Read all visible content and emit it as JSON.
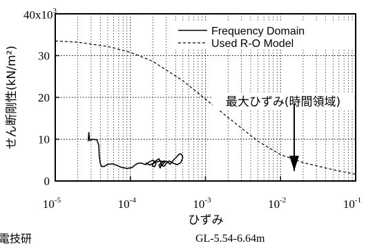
{
  "chart_data": {
    "type": "line",
    "title": "",
    "xlabel": "ひずみ",
    "ylabel": "せん断剛性(kN/m²)",
    "y_multiplier_label": "40x10",
    "y_multiplier_exp": "3",
    "xscale": "log",
    "xlim": [
      1e-05,
      0.1
    ],
    "ylim": [
      0,
      40
    ],
    "grid": true,
    "legend_position": "top-right",
    "x_ticks": [
      {
        "value": 1e-05,
        "base": "10",
        "exp": "-5"
      },
      {
        "value": 0.0001,
        "base": "10",
        "exp": "-4"
      },
      {
        "value": 0.001,
        "base": "10",
        "exp": "-3"
      },
      {
        "value": 0.01,
        "base": "10",
        "exp": "-2"
      },
      {
        "value": 0.1,
        "base": "10",
        "exp": "-1"
      }
    ],
    "y_ticks": [
      {
        "value": 0,
        "label": "0"
      },
      {
        "value": 10,
        "label": "10"
      },
      {
        "value": 20,
        "label": "20"
      },
      {
        "value": 30,
        "label": "30"
      }
    ],
    "series": [
      {
        "name": "Frequency Domain",
        "style": "solid",
        "color": "#000000",
        "points": [
          [
            2.75e-05,
            9.5
          ],
          [
            2.8e-05,
            11.6
          ],
          [
            2.85e-05,
            10.2
          ],
          [
            2.9e-05,
            9.7
          ],
          [
            3.2e-05,
            10.0
          ],
          [
            3.6e-05,
            9.8
          ],
          [
            3.8e-05,
            8.5
          ],
          [
            3.85e-05,
            6.0
          ],
          [
            4e-05,
            4.0
          ],
          [
            4.2e-05,
            3.4
          ],
          [
            4.5e-05,
            3.5
          ],
          [
            5e-05,
            4.0
          ],
          [
            5.8e-05,
            4.1
          ],
          [
            6.5e-05,
            3.8
          ],
          [
            7.5e-05,
            3.3
          ],
          [
            9e-05,
            3.0
          ],
          [
            0.000105,
            3.2
          ],
          [
            0.000115,
            3.8
          ],
          [
            0.000125,
            4.2
          ],
          [
            0.00014,
            4.3
          ],
          [
            0.00016,
            3.9
          ],
          [
            0.00018,
            4.6
          ],
          [
            0.0002,
            5.0
          ],
          [
            0.00022,
            4.2
          ],
          [
            0.00021,
            3.4
          ],
          [
            0.000195,
            3.6
          ],
          [
            0.000205,
            4.5
          ],
          [
            0.00024,
            5.3
          ],
          [
            0.00026,
            4.1
          ],
          [
            0.00025,
            3.1
          ],
          [
            0.00024,
            3.8
          ],
          [
            0.00028,
            4.8
          ],
          [
            0.00031,
            4.6
          ],
          [
            0.00034,
            4.0
          ],
          [
            0.00037,
            4.9
          ],
          [
            0.00041,
            5.7
          ],
          [
            0.00045,
            6.5
          ],
          [
            0.00048,
            6.4
          ],
          [
            0.0005,
            5.6
          ],
          [
            0.00047,
            4.4
          ],
          [
            0.00042,
            3.9
          ],
          [
            0.00037,
            4.3
          ],
          [
            0.00033,
            4.8
          ],
          [
            0.0003,
            4.2
          ],
          [
            0.00028,
            3.5
          ],
          [
            0.00026,
            3.7
          ],
          [
            0.00029,
            4.6
          ],
          [
            0.00025,
            4.8
          ],
          [
            0.00021,
            4.4
          ],
          [
            0.00018,
            3.8
          ],
          [
            0.00016,
            4.4
          ]
        ]
      },
      {
        "name": "Used R-O Model",
        "style": "dashed",
        "color": "#000000",
        "points": [
          [
            1e-05,
            33.5
          ],
          [
            2e-05,
            33.2
          ],
          [
            5e-05,
            32.2
          ],
          [
            0.0001,
            30.8
          ],
          [
            0.0002,
            28.6
          ],
          [
            0.0005,
            24.0
          ],
          [
            0.001,
            19.6
          ],
          [
            0.002,
            15.2
          ],
          [
            0.005,
            9.5
          ],
          [
            0.01,
            6.3
          ],
          [
            0.02,
            4.4
          ],
          [
            0.05,
            2.7
          ],
          [
            0.1,
            1.6
          ]
        ]
      }
    ],
    "annotation": {
      "text": "最大ひずみ(時間領域)",
      "arrow_x": 0.0152,
      "arrow_from_y": 18.5,
      "arrow_to_y": 2.4
    }
  },
  "source_note": "電技研",
  "location_note": "GL-5.54-6.64m"
}
